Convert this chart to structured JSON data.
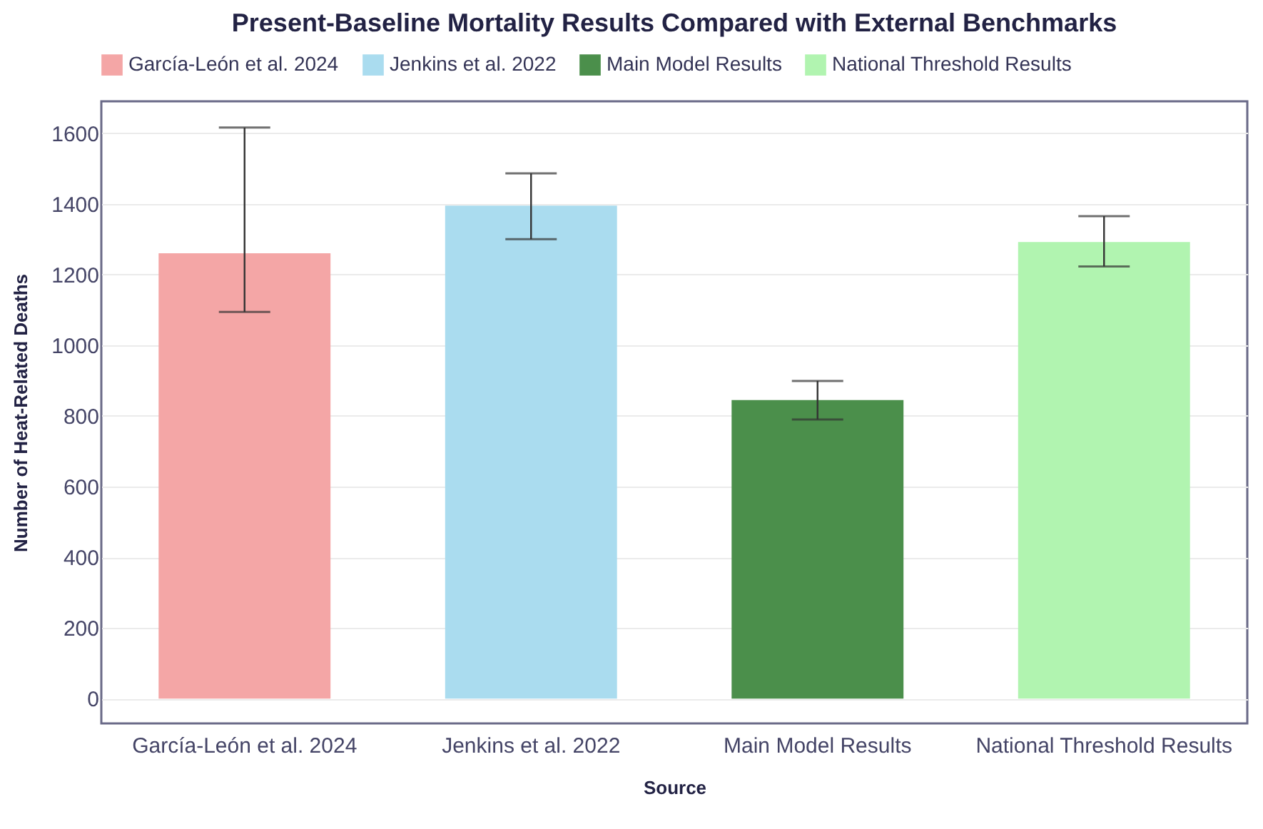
{
  "chart_data": {
    "type": "bar",
    "title": "Present-Baseline Mortality Results Compared with External Benchmarks",
    "xlabel": "Source",
    "ylabel": "Number of Heat-Related Deaths",
    "categories": [
      "García-León et al. 2024",
      "Jenkins et al. 2022",
      "Main Model Results",
      "National Threshold Results"
    ],
    "series": [
      {
        "name": "García-León et al. 2024",
        "color": "#f4a6a6",
        "values": [
          1260,
          null,
          null,
          null
        ],
        "errors": [
          [
            1094,
            1616
          ],
          null,
          null,
          null
        ]
      },
      {
        "name": "Jenkins et al. 2022",
        "color": "#aadcef",
        "values": [
          null,
          1395,
          null,
          null
        ],
        "errors": [
          null,
          [
            1300,
            1486
          ],
          null,
          null
        ]
      },
      {
        "name": "Main Model Results",
        "color": "#4b8f4b",
        "values": [
          null,
          null,
          845,
          null
        ],
        "errors": [
          null,
          null,
          [
            790,
            899
          ],
          null
        ]
      },
      {
        "name": "National Threshold Results",
        "color": "#b1f4b0",
        "values": [
          null,
          null,
          null,
          1292
        ],
        "errors": [
          null,
          null,
          null,
          [
            1223,
            1365
          ]
        ]
      }
    ],
    "ylim": [
      -70,
      1690
    ],
    "yticks": [
      0,
      200,
      400,
      600,
      800,
      1000,
      1200,
      1400,
      1600
    ],
    "grid": "y",
    "legend": "top"
  }
}
